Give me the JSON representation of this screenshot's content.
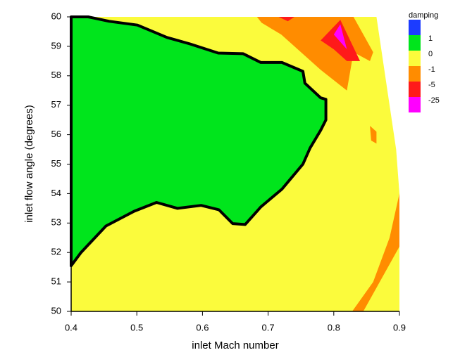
{
  "chart_data": {
    "type": "contour",
    "xlabel": "inlet Mach number",
    "ylabel": "inlet flow angle (degrees)",
    "xlim": [
      0.4,
      0.9
    ],
    "ylim": [
      50,
      60
    ],
    "xticks": [
      0.4,
      0.5,
      0.6,
      0.7,
      0.8,
      0.9
    ],
    "yticks": [
      50,
      51,
      52,
      53,
      54,
      55,
      56,
      57,
      58,
      59,
      60
    ],
    "legend": {
      "title": "damping",
      "levels": [
        1,
        0,
        -1,
        -5,
        -25
      ],
      "colors": [
        "#1c3cff",
        "#00e51c",
        "#fbfb3c",
        "#ff8c00",
        "#ff1a1a",
        "#ff00ff"
      ]
    },
    "regions": [
      {
        "color": "#fbfb3c",
        "x": [
          0.4,
          0.9,
          0.9,
          0.895,
          0.885,
          0.875,
          0.865,
          0.4
        ],
        "y": [
          50,
          50,
          54,
          55.5,
          57,
          58.5,
          60,
          60
        ]
      },
      {
        "color": "#ff8c00",
        "x": [
          0.683,
          0.83,
          0.86,
          0.855,
          0.83,
          0.82,
          0.78,
          0.72,
          0.69
        ],
        "y": [
          60,
          60,
          58.8,
          58.5,
          58.8,
          57.5,
          58.2,
          59.4,
          59.8
        ]
      },
      {
        "color": "#ff8c00",
        "x": [
          0.855,
          0.865,
          0.865,
          0.857
        ],
        "y": [
          56.3,
          56.1,
          55.7,
          55.8
        ]
      },
      {
        "color": "#ff8c00",
        "x": [
          0.9,
          0.9,
          0.845,
          0.828,
          0.86,
          0.885
        ],
        "y": [
          54,
          52.2,
          50,
          50,
          51,
          52.5
        ]
      },
      {
        "color": "#ff1a1a",
        "x": [
          0.78,
          0.81,
          0.84,
          0.82,
          0.8
        ],
        "y": [
          59.2,
          59.9,
          58.5,
          58.5,
          58.9
        ]
      },
      {
        "color": "#ff1a1a",
        "x": [
          0.716,
          0.74,
          0.73
        ],
        "y": [
          60,
          60,
          59.85
        ]
      },
      {
        "color": "#ff00ff",
        "x": [
          0.8,
          0.81,
          0.82
        ],
        "y": [
          59.4,
          59.75,
          58.9
        ]
      },
      {
        "color": "#00e51c",
        "outline": true,
        "x": [
          0.4,
          0.415,
          0.453,
          0.496,
          0.53,
          0.562,
          0.598,
          0.625,
          0.646,
          0.665,
          0.689,
          0.721,
          0.753,
          0.764,
          0.78,
          0.788,
          0.788,
          0.78,
          0.756,
          0.753,
          0.721,
          0.689,
          0.662,
          0.624,
          0.581,
          0.546,
          0.501,
          0.458,
          0.426,
          0.4
        ],
        "y": [
          51.55,
          52.0,
          52.9,
          53.4,
          53.7,
          53.5,
          53.6,
          53.45,
          52.98,
          52.95,
          53.55,
          54.15,
          55.0,
          55.55,
          56.15,
          56.5,
          57.2,
          57.25,
          57.75,
          58.15,
          58.45,
          58.45,
          58.75,
          58.77,
          59.08,
          59.3,
          59.72,
          59.85,
          60,
          60
        ]
      }
    ]
  }
}
